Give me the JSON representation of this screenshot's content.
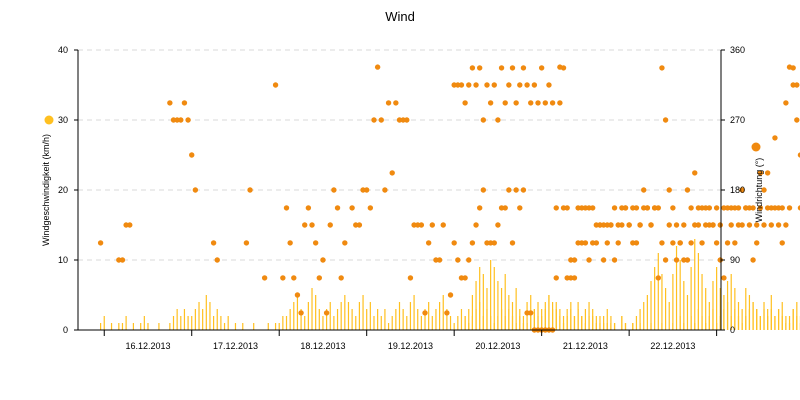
{
  "chart_data": {
    "type": "bar+scatter",
    "title": "Wind",
    "ylabel_left": "Windgeschwindigkeit (km/h)",
    "ylabel_right": "Windrichtung (°)",
    "ylim_left": [
      0,
      40
    ],
    "ylim_right": [
      0,
      360
    ],
    "yticks_left": [
      0,
      10,
      20,
      30,
      40
    ],
    "yticks_right": [
      0,
      90,
      180,
      270,
      360
    ],
    "x_days": [
      "16.12.2013",
      "17.12.2013",
      "18.12.2013",
      "19.12.2013",
      "20.12.2013",
      "21.12.2013",
      "22.12.2013"
    ],
    "x_range_days": [
      -0.3,
      7.05
    ],
    "grid": true,
    "legend": "icons beside y-axis titles",
    "colors": {
      "speed": "#FFC020",
      "direction": "#F08A10",
      "grid": "#D8D8D8",
      "axis": "#000000"
    },
    "series": [
      {
        "name": "Windgeschwindigkeit (km/h)",
        "type": "bar",
        "axis": "left",
        "segments": [
          {
            "start": "15.12.2013 23:00",
            "values": [
              1,
              2,
              0,
              1,
              0,
              1,
              1,
              2,
              0,
              1,
              0,
              1,
              2,
              1,
              0,
              0,
              1,
              0,
              0,
              1,
              2,
              3,
              2,
              3,
              2,
              2,
              3,
              4,
              3,
              5,
              4,
              2,
              3,
              2,
              1,
              2,
              0,
              1,
              0,
              1,
              0,
              0,
              1,
              0,
              0,
              0,
              1,
              0,
              1,
              1,
              2,
              2,
              3,
              4,
              5,
              3,
              2,
              4,
              6,
              5,
              3,
              2,
              3,
              4,
              2,
              3,
              4,
              5,
              4,
              3,
              2,
              4,
              5,
              3,
              4,
              2,
              3,
              2,
              3,
              1,
              2,
              3,
              4,
              3,
              2,
              4,
              5,
              3,
              2,
              3,
              4,
              2,
              3,
              4,
              5,
              3,
              2,
              1,
              2,
              3,
              2,
              1,
              2,
              3,
              4,
              2,
              3,
              2,
              1,
              2,
              3,
              2,
              3,
              2,
              1,
              2,
              1,
              1,
              2,
              3,
              2,
              3,
              4,
              5,
              3,
              4,
              3,
              2,
              3,
              4,
              2,
              3,
              2,
              1,
              2,
              3,
              2,
              1,
              2,
              1,
              1,
              1,
              0,
              2,
              1,
              0,
              1,
              2,
              3,
              4,
              5,
              7,
              9,
              11,
              8,
              6,
              4,
              8,
              12,
              10,
              7,
              5,
              9,
              13,
              11,
              8,
              6,
              4,
              7,
              9,
              6,
              5,
              7,
              8,
              6,
              4,
              3,
              6,
              5,
              4,
              3,
              2,
              4,
              3,
              5,
              2,
              3,
              4,
              2,
              1,
              3,
              2,
              1,
              3,
              2,
              4,
              3,
              2,
              3,
              1,
              0,
              2,
              1
            ]
          },
          {
            "start": "20.12.2013 03:00",
            "values": [
              2,
              3,
              5,
              7,
              9,
              8,
              6,
              10,
              9,
              7,
              6,
              8,
              5,
              4,
              6,
              3,
              2,
              4,
              5,
              3,
              4,
              2,
              3,
              5,
              4,
              3,
              2,
              1,
              2,
              3,
              2,
              4,
              2,
              3,
              4,
              2,
              1,
              2,
              1,
              3,
              2,
              1,
              0,
              2,
              1,
              0,
              1,
              0,
              1,
              0,
              0,
              1,
              0,
              0,
              1,
              0,
              0,
              1,
              0,
              2,
              1,
              0,
              2,
              1,
              3,
              2,
              1,
              2,
              3,
              1,
              2,
              3,
              4,
              2,
              3,
              2,
              1,
              2,
              3,
              4,
              3,
              2,
              3,
              2,
              3,
              2,
              3,
              2,
              1,
              2,
              3,
              4,
              2,
              3,
              1,
              2,
              1,
              2,
              0,
              1,
              0,
              0,
              1,
              0,
              2,
              1,
              2,
              3,
              2,
              3,
              4,
              5,
              6,
              3,
              4,
              5,
              7,
              8,
              6,
              9,
              7,
              10,
              8,
              12,
              9,
              13,
              10,
              14,
              12,
              11,
              15,
              13,
              9,
              12,
              14,
              16,
              11,
              14,
              17,
              13,
              10,
              12,
              15,
              18,
              14,
              11,
              16,
              19,
              12,
              13,
              17,
              22,
              16,
              20,
              27,
              24,
              14,
              18,
              25,
              20,
              12,
              15,
              22,
              15,
              10,
              6
            ]
          }
        ]
      },
      {
        "name": "Windrichtung (°)",
        "type": "scatter",
        "axis": "right",
        "segments": [
          {
            "start": "15.12.2013 23:00",
            "values": [
              112,
              null,
              null,
              null,
              null,
              90,
              90,
              135,
              135,
              null,
              null,
              null,
              null,
              null,
              null,
              null,
              null,
              null,
              null,
              292,
              270,
              270,
              270,
              292,
              270,
              225,
              180,
              null,
              null,
              null,
              null,
              112,
              90,
              null,
              null,
              null,
              null,
              null,
              null,
              null,
              112,
              180,
              null,
              null,
              null,
              67,
              null,
              null,
              315,
              null,
              67,
              157,
              112,
              67,
              45,
              22,
              135,
              157,
              135,
              112,
              67,
              90,
              22,
              135,
              180,
              157,
              67,
              112,
              null,
              157,
              135,
              135,
              180,
              180,
              157,
              270,
              338,
              270,
              180,
              292,
              202,
              292,
              270,
              270,
              270,
              67,
              135,
              135,
              135,
              22,
              112,
              135,
              90,
              90,
              135,
              22,
              45,
              112,
              90,
              67,
              67,
              90,
              112,
              135,
              157,
              180,
              112,
              112,
              112,
              135,
              157,
              157,
              180,
              112,
              180,
              157,
              180,
              22,
              22,
              0,
              0,
              0,
              0,
              0,
              0,
              157,
              338,
              157,
              157,
              90,
              90,
              112,
              112,
              112,
              90,
              112,
              112,
              135,
              90,
              112,
              135,
              90,
              112,
              135,
              157,
              135,
              112,
              112,
              135,
              180,
              157,
              135,
              157,
              67,
              112,
              90,
              135,
              112,
              90,
              112,
              135,
              180,
              157,
              202,
              135,
              112,
              157,
              157,
              135,
              112,
              90,
              67,
              112,
              157,
              112,
              135,
              180,
              157,
              157,
              90,
              112,
              202,
              180,
              202,
              157,
              247,
              157,
              112,
              292,
              338,
              315,
              315,
              157,
              112,
              112,
              90,
              45,
              67,
              22,
              112,
              22,
              22,
              22,
              22,
              22,
              22,
              22,
              22,
              22,
              22,
              22,
              22,
              22,
              22,
              22,
              22,
              0,
              0,
              0,
              0,
              0,
              0,
              0,
              0,
              0
            ]
          },
          {
            "start": "20.12.2013 00:00",
            "values": [
              315,
              315,
              315,
              292,
              315,
              337,
              315,
              337,
              270,
              315,
              292,
              315,
              270,
              337,
              292,
              315,
              337,
              292,
              315,
              337,
              315,
              292,
              315,
              292,
              337,
              292,
              315,
              292,
              67,
              292,
              337,
              67,
              67,
              67,
              157,
              157,
              157,
              157,
              157,
              135,
              135,
              135,
              135,
              135,
              157,
              135,
              157,
              157,
              135,
              157,
              157,
              135,
              157,
              157,
              135,
              157,
              157,
              337,
              270,
              180,
              157,
              135,
              112,
              90,
              90,
              112,
              135,
              157,
              157,
              135,
              135,
              135,
              157,
              135,
              157,
              157,
              135,
              157,
              157,
              135,
              157,
              135,
              157,
              135,
              157,
              135,
              157,
              135,
              157,
              135,
              157,
              135,
              157,
              337,
              270,
              225,
              202,
              180,
              157,
              135,
              112,
              90,
              90,
              112,
              135,
              157,
              180,
              202,
              225,
              247,
              270,
              292,
              315,
              337,
              315,
              292,
              270,
              247,
              225,
              202,
              180,
              157,
              135,
              112,
              90,
              67,
              45,
              22,
              0,
              22,
              45,
              67,
              90,
              112,
              135,
              157,
              180,
              202,
              225,
              247,
              270,
              292,
              315,
              337,
              315,
              292,
              270,
              247,
              225,
              202,
              180,
              157,
              135,
              112,
              90,
              67,
              45,
              22,
              0,
              0,
              0,
              0,
              0,
              0,
              0
            ]
          }
        ]
      }
    ]
  }
}
